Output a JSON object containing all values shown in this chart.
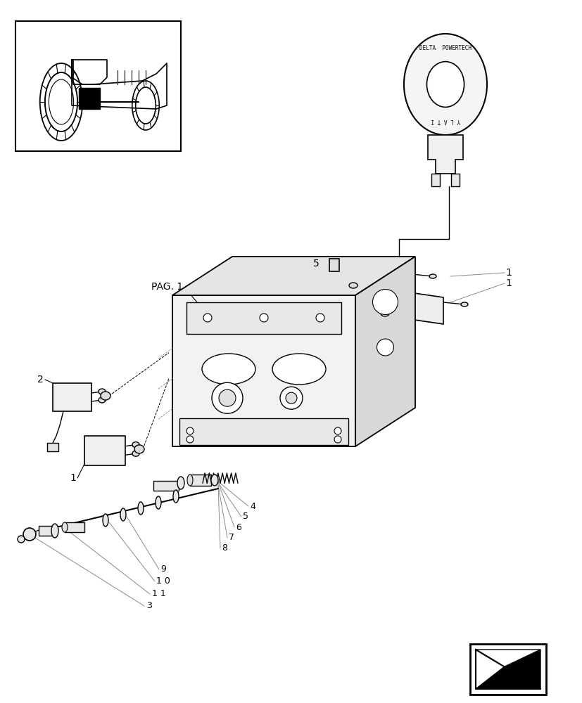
{
  "bg_color": "#ffffff",
  "line_color": "#000000",
  "fig_width": 8.28,
  "fig_height": 10.0,
  "labels": {
    "pag1": "PAG. 1",
    "num1": "1",
    "num2": "2",
    "num3": "3",
    "num4": "4",
    "num5": "5",
    "num6": "6",
    "num7": "7",
    "num8": "8",
    "num9": "9",
    "num10": "1 0",
    "num11": "1 1"
  }
}
